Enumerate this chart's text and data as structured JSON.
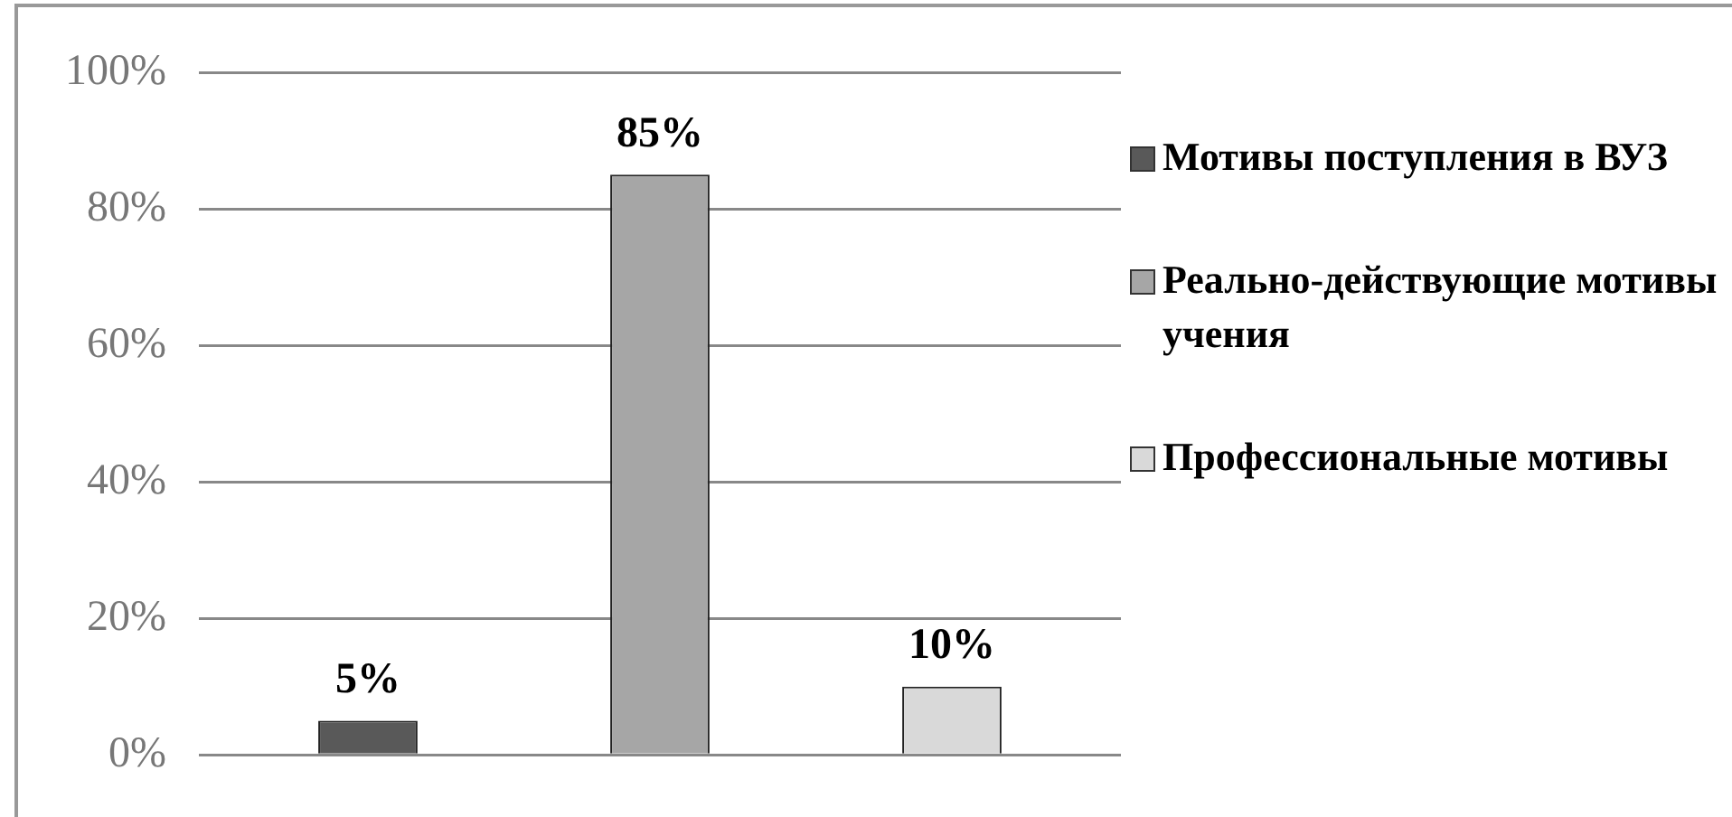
{
  "chart_data": {
    "type": "bar",
    "categories": [
      null
    ],
    "series": [
      {
        "name": "Мотивы поступления в ВУЗ",
        "color": "#595959",
        "values": [
          5
        ],
        "value_labels": [
          "5%"
        ]
      },
      {
        "name": "Реально-действующие мотивы учения",
        "color": "#a6a6a6",
        "values": [
          85
        ],
        "value_labels": [
          "85%"
        ]
      },
      {
        "name": "Профессиональные мотивы",
        "color": "#d9d9d9",
        "values": [
          10
        ],
        "value_labels": [
          "10%"
        ]
      }
    ],
    "ylim": [
      0,
      100
    ],
    "yticks": [
      {
        "value": 0,
        "label": "0%"
      },
      {
        "value": 20,
        "label": "20%"
      },
      {
        "value": 40,
        "label": "40%"
      },
      {
        "value": 60,
        "label": "60%"
      },
      {
        "value": 80,
        "label": "80%"
      },
      {
        "value": 100,
        "label": "100%"
      }
    ],
    "grid": "y",
    "legend": "right"
  }
}
